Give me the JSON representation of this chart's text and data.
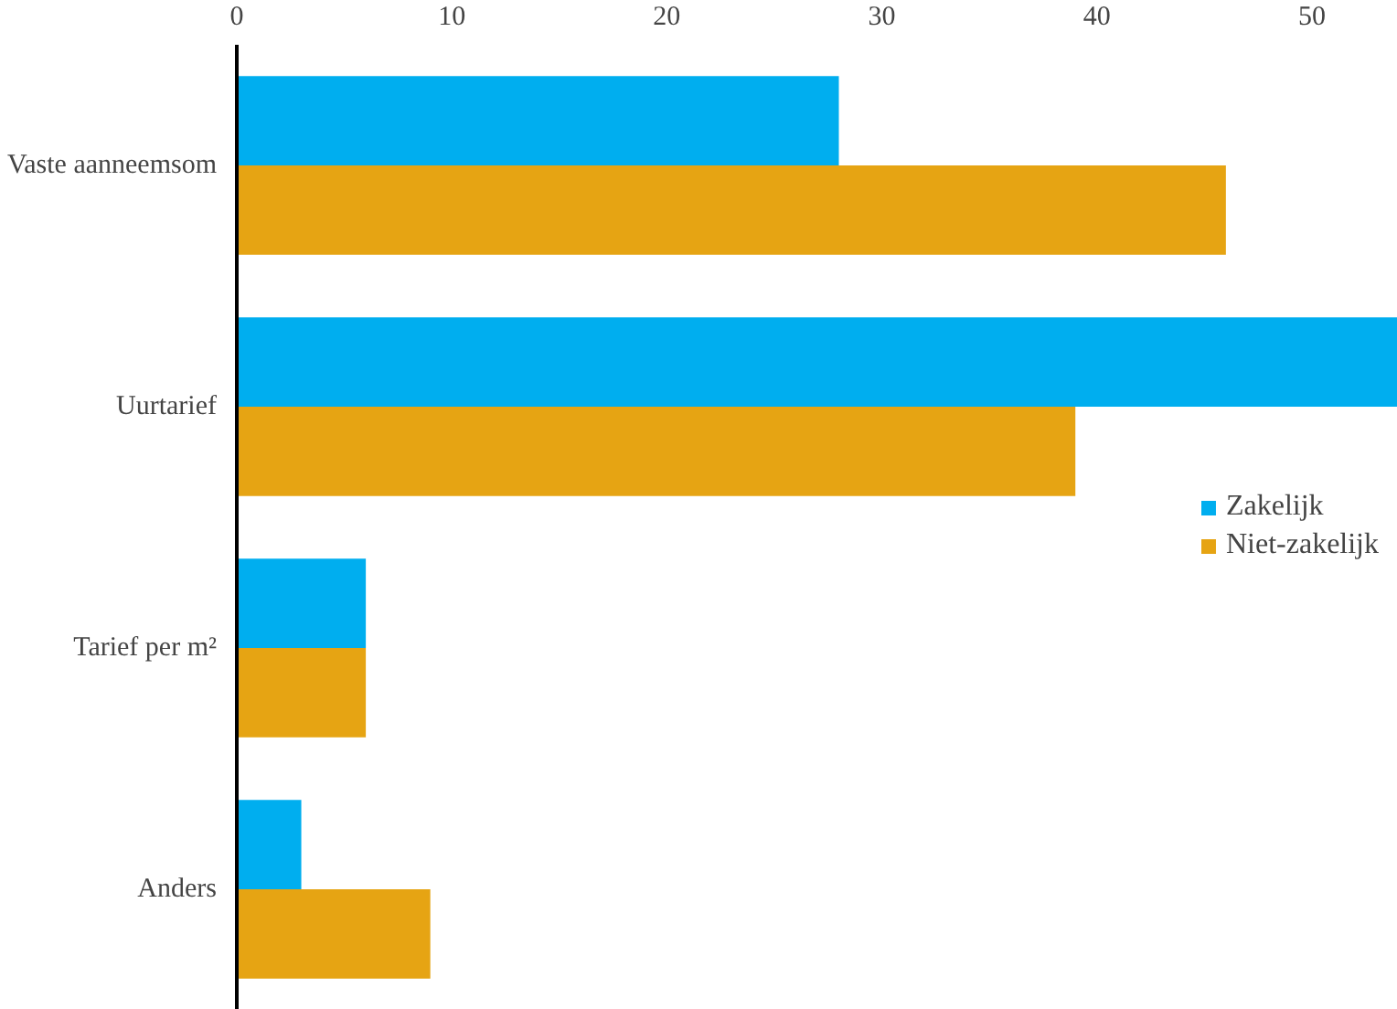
{
  "chart_data": {
    "type": "bar",
    "orientation": "horizontal",
    "categories": [
      "Vaste aanneemsom",
      "Uurtarief",
      "Tarief per m²",
      "Anders"
    ],
    "series": [
      {
        "name": "Zakelijk",
        "color": "#00aeef",
        "values": [
          28,
          54,
          6,
          3
        ]
      },
      {
        "name": "Niet-zakelijk",
        "color": "#e6a413",
        "values": [
          46,
          39,
          6,
          9
        ]
      }
    ],
    "xlim": [
      0,
      54
    ],
    "xticks": [
      0,
      10,
      20,
      30,
      40,
      50
    ],
    "grid": false,
    "legend": "right"
  }
}
